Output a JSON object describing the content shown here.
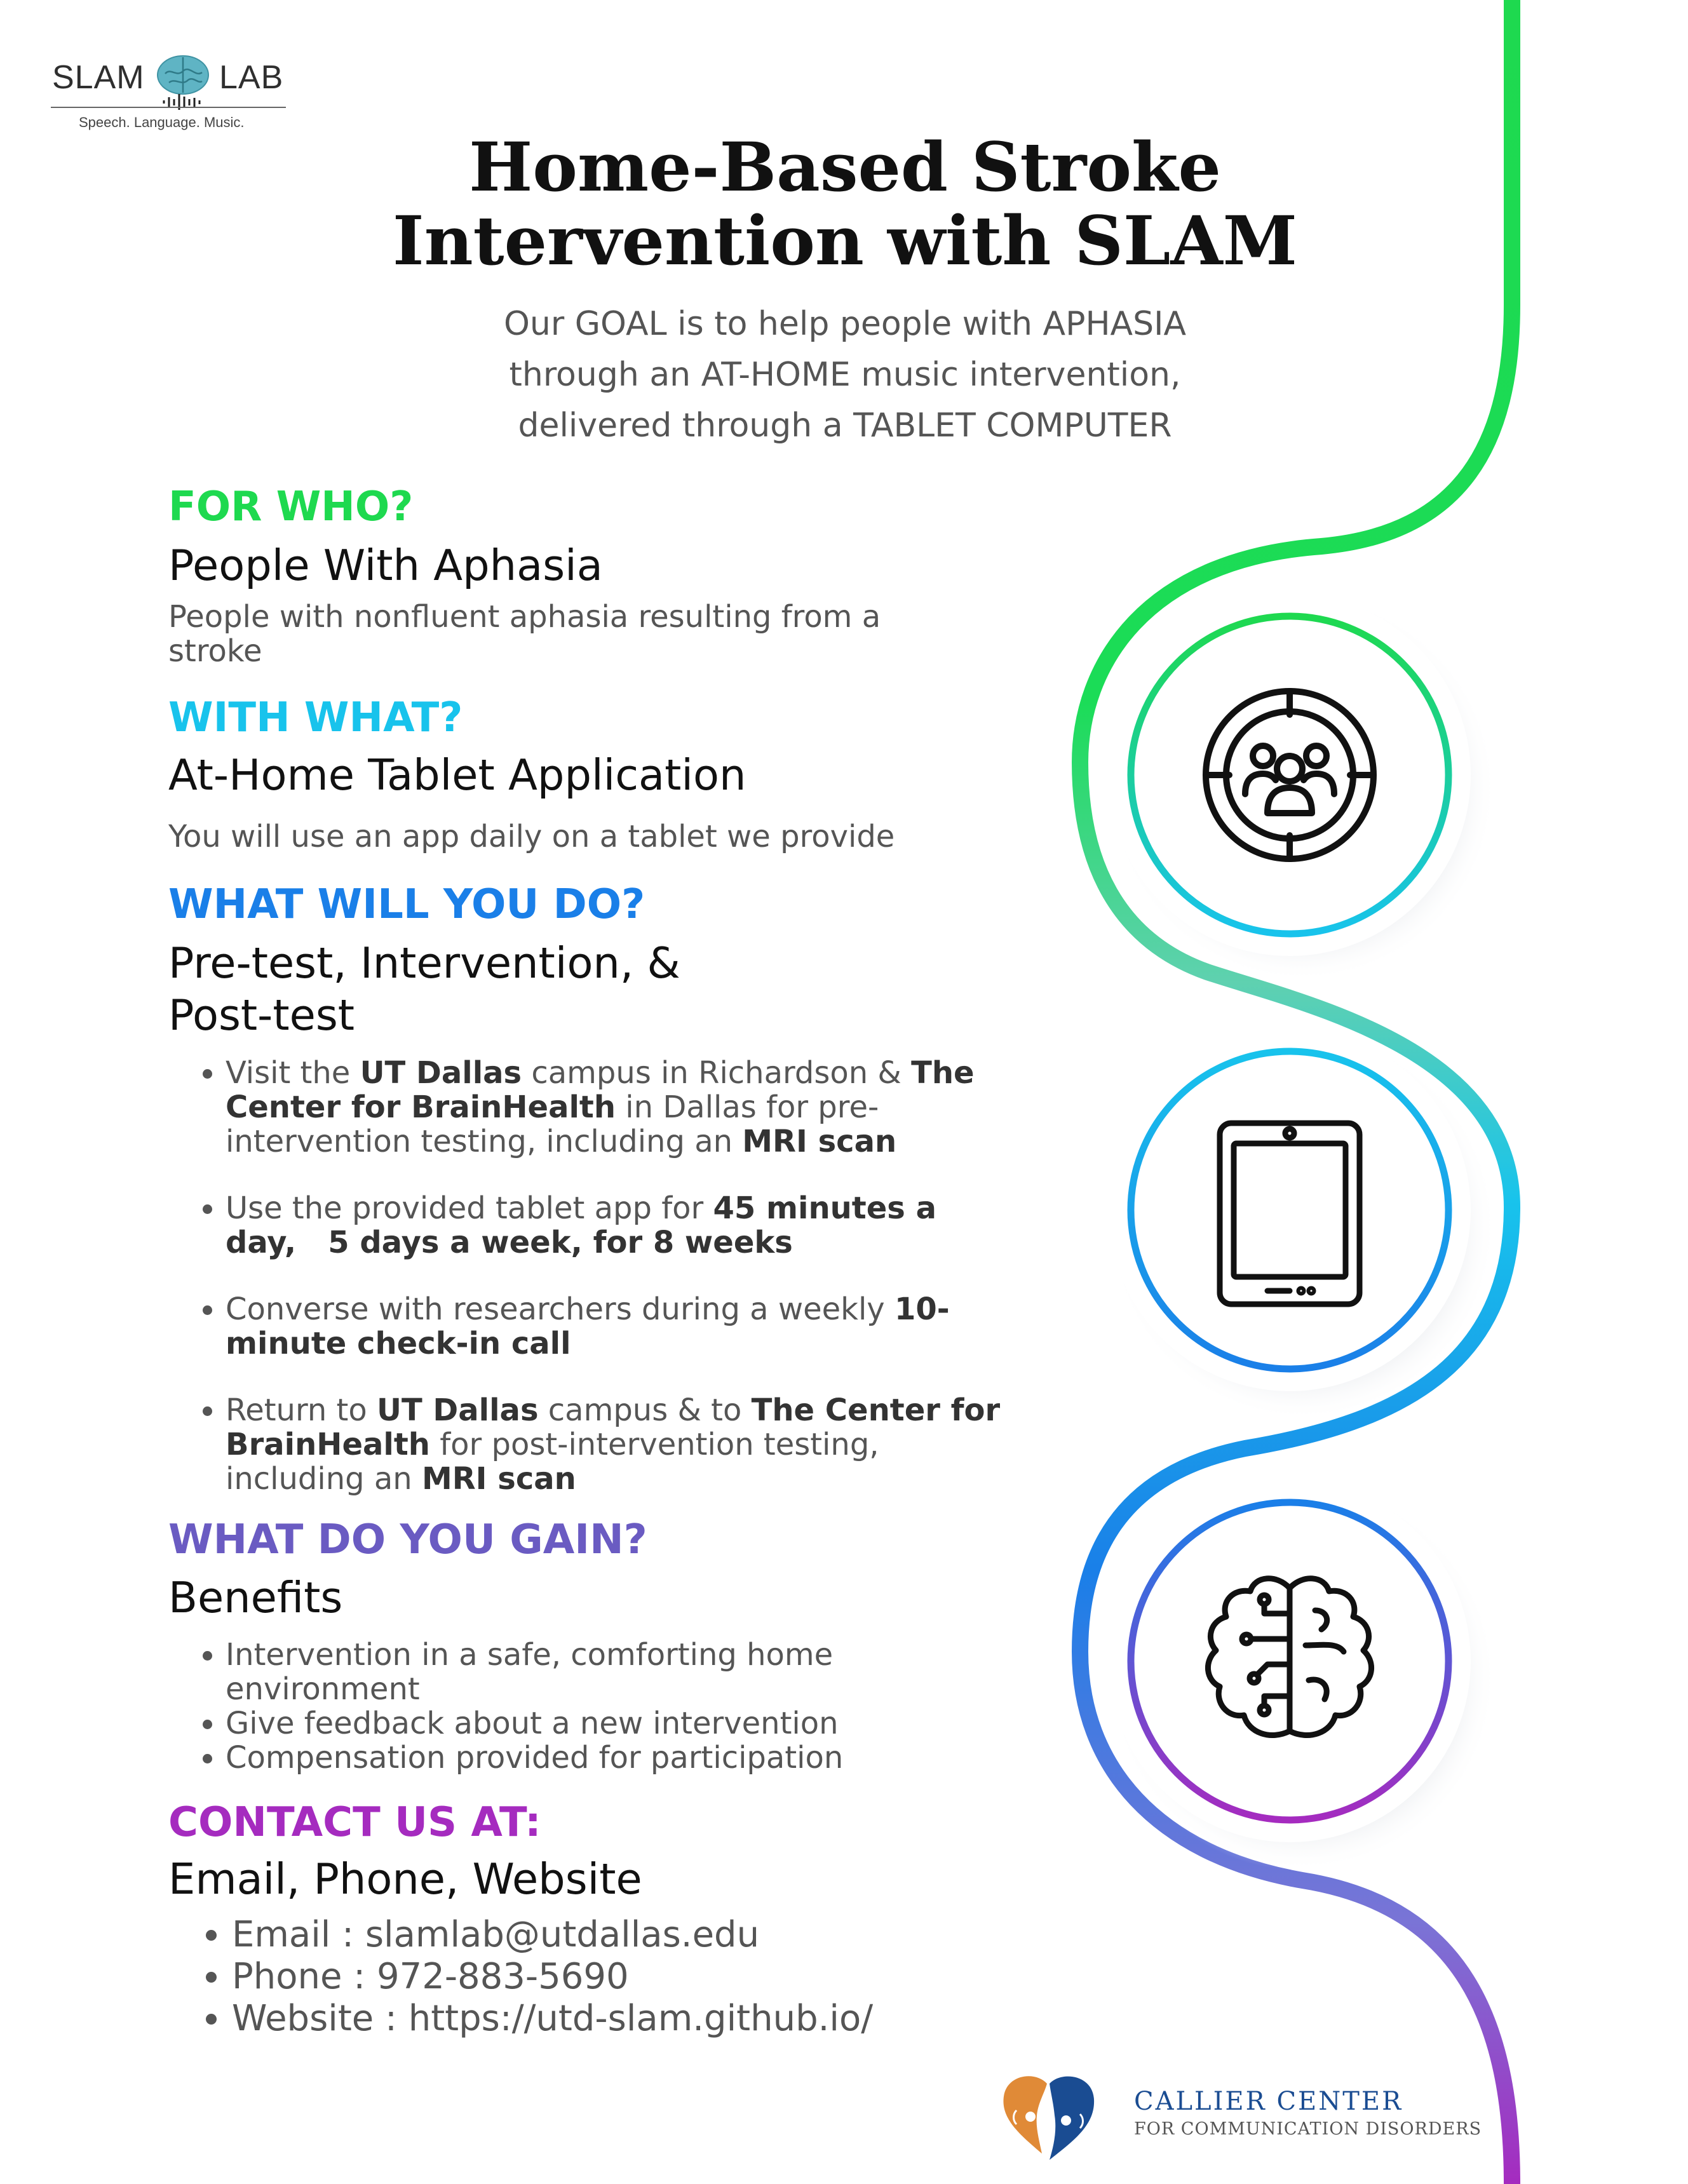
{
  "logo": {
    "left": "SLAM",
    "right": "LAB",
    "tagline": "Speech. Language. Music."
  },
  "title": {
    "line1": "Home-Based Stroke",
    "line2": "Intervention with SLAM"
  },
  "subtitle": {
    "line1": "Our GOAL is to help people with APHASIA",
    "line2": "through an AT-HOME music intervention,",
    "line3": "delivered through a TABLET COMPUTER"
  },
  "colors": {
    "green": "#1ed94f",
    "cyan": "#18c3ec",
    "blue": "#1a7fe8",
    "indigo": "#6a5bc2",
    "purple": "#a52bbf"
  },
  "for_who": {
    "question": "FOR WHO?",
    "heading": "People With Aphasia",
    "body_line1": "People with nonfluent aphasia resulting from a",
    "body_line2": "stroke"
  },
  "with_what": {
    "question": "WITH WHAT?",
    "heading": "At-Home Tablet Application",
    "body": "You will use an app daily on a tablet we provide"
  },
  "what_do": {
    "question": "WHAT WILL YOU DO?",
    "heading_line1": "Pre-test, Intervention, &",
    "heading_line2": "Post-test",
    "bullets": [
      {
        "t1": "Visit the ",
        "k1": "UT Dallas",
        "t2": " campus in Richardson & ",
        "k2": "The",
        "line2_k": "Center for BrainHealth",
        "line2_t": " in Dallas for pre-",
        "line3_t": "intervention testing, including an ",
        "line3_k": "MRI scan"
      },
      {
        "t1": "Use the provided tablet app for ",
        "k1": "45 minutes a",
        "line2_k": "day,   5 days a week, for 8 weeks"
      },
      {
        "t1": "Converse with researchers during a weekly ",
        "k1": "10-",
        "line2_k": "minute check-in call"
      },
      {
        "t1": "Return to ",
        "k1": "UT Dallas",
        "t2": " campus & to ",
        "k2": "The Center for",
        "line2_k": "BrainHealth",
        "line2_t": " for post-intervention testing,",
        "line3_t": "including an ",
        "line3_k": "MRI scan"
      }
    ]
  },
  "gain": {
    "question": "WHAT DO YOU GAIN?",
    "heading": "Benefits",
    "bullet1_line1": "Intervention in a safe, comforting home",
    "bullet1_line2": "environment",
    "bullet2": "Give feedback about a new intervention",
    "bullet3": "Compensation provided for participation"
  },
  "contact": {
    "question": "CONTACT US AT:",
    "heading": "Email, Phone, Website",
    "email": "Email : slamlab@utdallas.edu",
    "phone": "Phone : 972-883-5690",
    "website": "Website : https://utd-slam.github.io/"
  },
  "icons": [
    "target-people-icon",
    "tablet-icon",
    "brain-circuit-icon"
  ],
  "callier": {
    "name": "CALLIER CENTER",
    "sub": "FOR COMMUNICATION DISORDERS"
  }
}
